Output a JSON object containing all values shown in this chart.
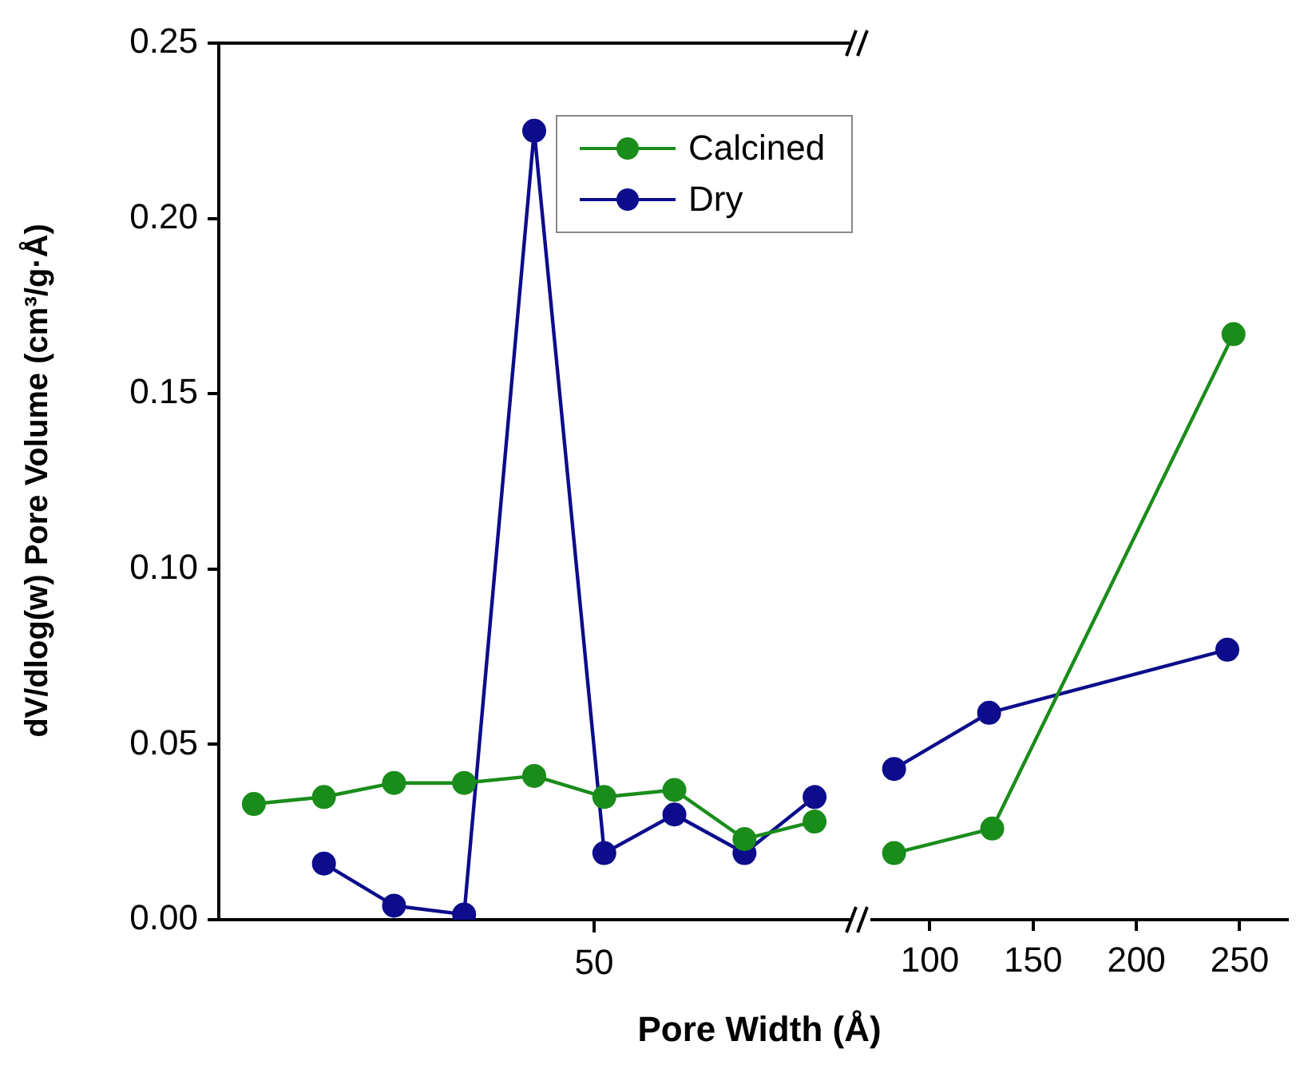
{
  "chart_data": [
    {
      "type": "line",
      "xlabel": "Pore Width (Å)",
      "ylabel": "dV/dlog(w) Pore Volume (cm³/g·Å)",
      "categories": [
        null,
        null,
        null,
        null,
        null,
        null,
        null,
        null,
        null
      ],
      "annotations": [
        "50"
      ],
      "ylim": [
        0,
        0.25
      ],
      "yticks": [
        {
          "value": 0,
          "label": "0.00"
        },
        {
          "value": 0.05,
          "label": "0.05"
        },
        {
          "value": 0.1,
          "label": "0.10"
        },
        {
          "value": 0.15,
          "label": "0.15"
        },
        {
          "value": 0.2,
          "label": "0.20"
        },
        {
          "value": 0.25,
          "label": "0.25"
        }
      ],
      "legend": "top",
      "marker": "circle",
      "series": [
        {
          "name": "Calcined",
          "color": "#1a8c1a",
          "values": [
            0.033,
            0.035,
            0.039,
            0.039,
            0.041,
            0.035,
            0.037,
            0.023,
            0.028
          ]
        },
        {
          "name": "Dry",
          "color": "#0c0c8c",
          "values": [
            null,
            0.016,
            0.004,
            0.0015,
            0.225,
            0.019,
            0.03,
            0.019,
            0.035
          ]
        }
      ]
    },
    {
      "type": "line",
      "xlim": [
        72,
        273
      ],
      "xticks": [
        100,
        150,
        200,
        250
      ],
      "ylim": [
        0,
        0.25
      ],
      "tick_labels": "x",
      "marker": "circle",
      "series": [
        {
          "color": "#1a8c1a",
          "x": [
            82.7,
            130.2,
            247
          ],
          "values": [
            0.019,
            0.026,
            0.167
          ]
        },
        {
          "color": "#0c0c8c",
          "x": [
            82.7,
            128.7,
            244
          ],
          "values": [
            0.043,
            0.059,
            0.077
          ]
        }
      ]
    }
  ]
}
